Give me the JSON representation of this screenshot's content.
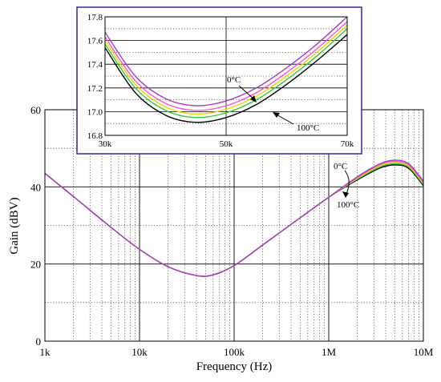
{
  "chart_data": [
    {
      "type": "line",
      "title": "",
      "xlabel": "Frequency (Hz)",
      "ylabel": "Gain (dBV)",
      "xscale": "log",
      "xlim": [
        1000,
        10000000
      ],
      "ylim": [
        0,
        60
      ],
      "x_tick_labels": [
        "1k",
        "10k",
        "100k",
        "1M",
        "10M"
      ],
      "y_tick_labels": [
        "0",
        "20",
        "40",
        "60"
      ],
      "grid": "major solid, minor dotted",
      "colors": {
        "0C": "#a040c0",
        "25C": "#ff4fd8",
        "50C": "#e8d800",
        "75C": "#38c838",
        "100C": "#000000"
      },
      "annotations": {
        "top": "0°C",
        "bottom": "100°C"
      },
      "series": [
        {
          "name": "",
          "x": [
            1000,
            2000,
            5000,
            10000,
            20000,
            40000,
            60000,
            100000,
            200000,
            500000,
            1000000,
            2000000,
            3500000,
            5000000,
            7000000,
            10000000
          ],
          "y": [
            43.5,
            37.5,
            29.5,
            23.8,
            19.3,
            17.0,
            17.2,
            19.6,
            24.9,
            32.0,
            37.3,
            42.6,
            46.0,
            46.9,
            46.0,
            41.5
          ]
        },
        {
          "name": "",
          "x": [
            1000,
            2000,
            5000,
            10000,
            20000,
            40000,
            60000,
            100000,
            200000,
            500000,
            1000000,
            2000000,
            3500000,
            5000000,
            7000000,
            10000000
          ],
          "y": [
            43.5,
            37.5,
            29.5,
            23.8,
            19.3,
            17.0,
            17.2,
            19.6,
            24.9,
            32.0,
            37.3,
            42.4,
            45.8,
            46.6,
            45.7,
            41.2
          ]
        },
        {
          "name": "",
          "x": [
            1000,
            2000,
            5000,
            10000,
            20000,
            40000,
            60000,
            100000,
            200000,
            500000,
            1000000,
            2000000,
            3500000,
            5000000,
            7000000,
            10000000
          ],
          "y": [
            43.5,
            37.5,
            29.5,
            23.8,
            19.3,
            17.0,
            17.2,
            19.6,
            24.9,
            32.0,
            37.3,
            42.2,
            45.5,
            46.3,
            45.4,
            40.9
          ]
        },
        {
          "name": "",
          "x": [
            1000,
            2000,
            5000,
            10000,
            20000,
            40000,
            60000,
            100000,
            200000,
            500000,
            1000000,
            2000000,
            3500000,
            5000000,
            7000000,
            10000000
          ],
          "y": [
            43.5,
            37.5,
            29.5,
            23.8,
            19.3,
            17.0,
            17.2,
            19.6,
            24.9,
            32.0,
            37.3,
            42.0,
            45.2,
            46.0,
            45.1,
            40.6
          ]
        },
        {
          "name": "",
          "x": [
            1000,
            2000,
            5000,
            10000,
            20000,
            40000,
            60000,
            100000,
            200000,
            500000,
            1000000,
            2000000,
            3500000,
            5000000,
            7000000,
            10000000
          ],
          "y": [
            43.5,
            37.5,
            29.5,
            23.8,
            19.3,
            17.0,
            17.2,
            19.6,
            24.9,
            32.0,
            37.3,
            41.8,
            44.9,
            45.7,
            44.8,
            40.3
          ]
        }
      ]
    },
    {
      "type": "line",
      "title": "",
      "xlabel": "",
      "ylabel": "",
      "xscale": "linear",
      "xlim": [
        30000,
        70000
      ],
      "ylim": [
        16.8,
        17.8
      ],
      "x_tick_labels": [
        "30k",
        "50k",
        "70k"
      ],
      "y_tick_labels": [
        "16.8",
        "17.0",
        "17.2",
        "17.4",
        "17.6",
        "17.8"
      ],
      "grid": "horizontal solid, vertical solid at 50k",
      "annotations": {
        "top": "0°C",
        "bottom": "100°C"
      },
      "series": [
        {
          "name": "",
          "x": [
            30000,
            35000,
            40000,
            45000,
            50000,
            55000,
            60000,
            65000,
            70000
          ],
          "y": [
            17.67,
            17.3,
            17.11,
            17.05,
            17.09,
            17.2,
            17.37,
            17.57,
            17.8
          ]
        },
        {
          "name": "",
          "x": [
            30000,
            35000,
            40000,
            45000,
            50000,
            55000,
            60000,
            65000,
            70000
          ],
          "y": [
            17.63,
            17.26,
            17.07,
            17.01,
            17.05,
            17.16,
            17.33,
            17.53,
            17.76
          ]
        },
        {
          "name": "",
          "x": [
            30000,
            35000,
            40000,
            45000,
            50000,
            55000,
            60000,
            65000,
            70000
          ],
          "y": [
            17.6,
            17.23,
            17.04,
            16.98,
            17.02,
            17.13,
            17.3,
            17.5,
            17.73
          ]
        },
        {
          "name": "",
          "x": [
            30000,
            35000,
            40000,
            45000,
            50000,
            55000,
            60000,
            65000,
            70000
          ],
          "y": [
            17.57,
            17.2,
            17.01,
            16.95,
            16.99,
            17.1,
            17.27,
            17.47,
            17.7
          ]
        },
        {
          "name": "",
          "x": [
            30000,
            35000,
            40000,
            45000,
            50000,
            55000,
            60000,
            65000,
            70000
          ],
          "y": [
            17.54,
            17.16,
            16.97,
            16.91,
            16.95,
            17.06,
            17.23,
            17.43,
            17.65
          ]
        }
      ]
    }
  ]
}
